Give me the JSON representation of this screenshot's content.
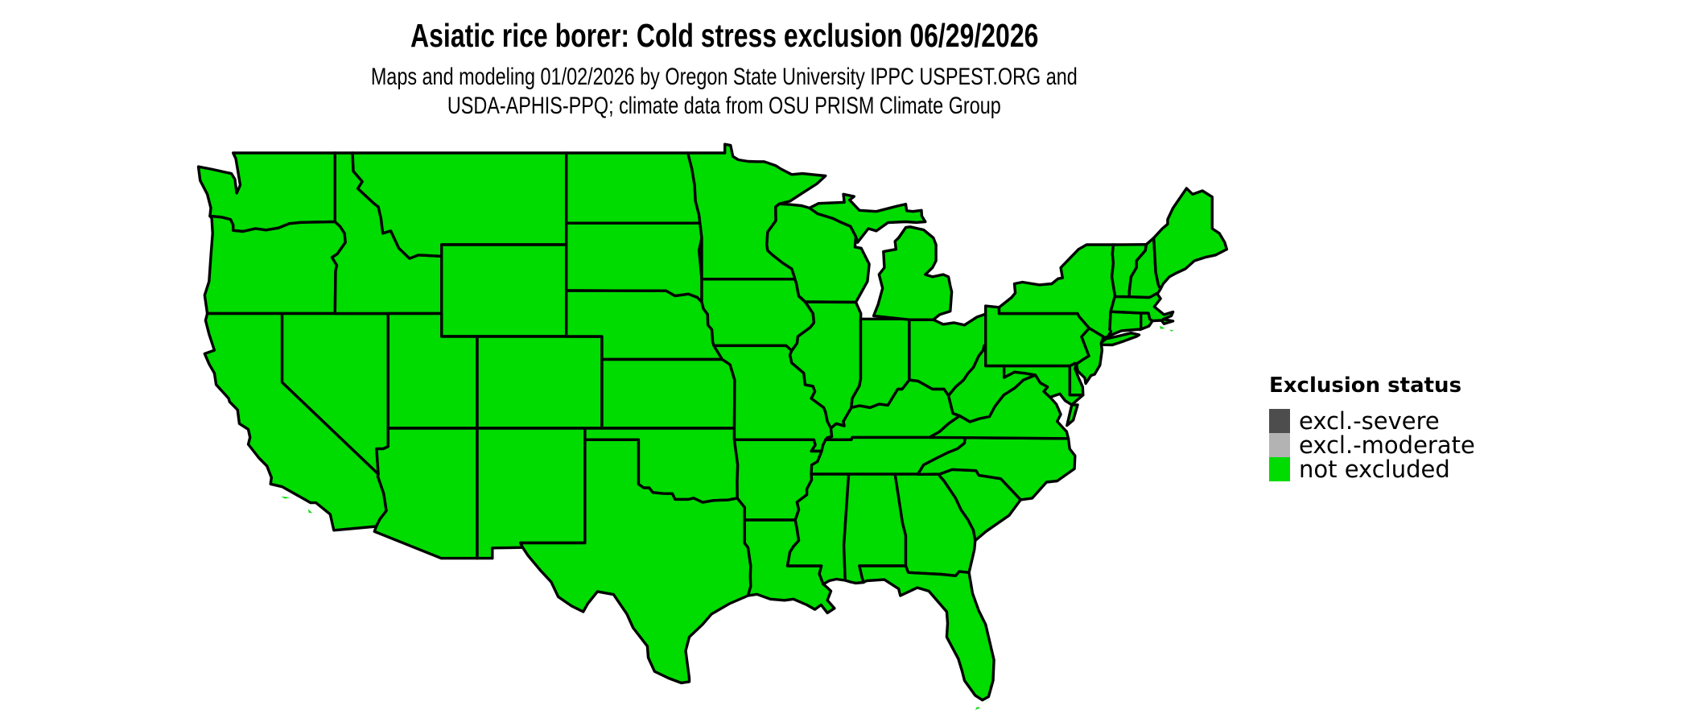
{
  "header": {
    "title": "Asiatic rice borer: Cold stress exclusion 06/29/2026",
    "subtitle_line1": "Maps and modeling 01/02/2026 by Oregon State University IPPC USPEST.ORG and",
    "subtitle_line2": "USDA-APHIS-PPQ; climate data from OSU PRISM Climate Group"
  },
  "map": {
    "region": "contiguous United States",
    "status_shown_everywhere": "not excluded",
    "fill_color": "#00DB00",
    "border_color": "#000000",
    "background_color": "#FFFFFF"
  },
  "legend": {
    "title": "Exclusion status",
    "items": [
      {
        "label": "excl.-severe",
        "color": "#4D4D4D"
      },
      {
        "label": "excl.-moderate",
        "color": "#B3B3B3"
      },
      {
        "label": "not excluded",
        "color": "#00DB00"
      }
    ]
  }
}
